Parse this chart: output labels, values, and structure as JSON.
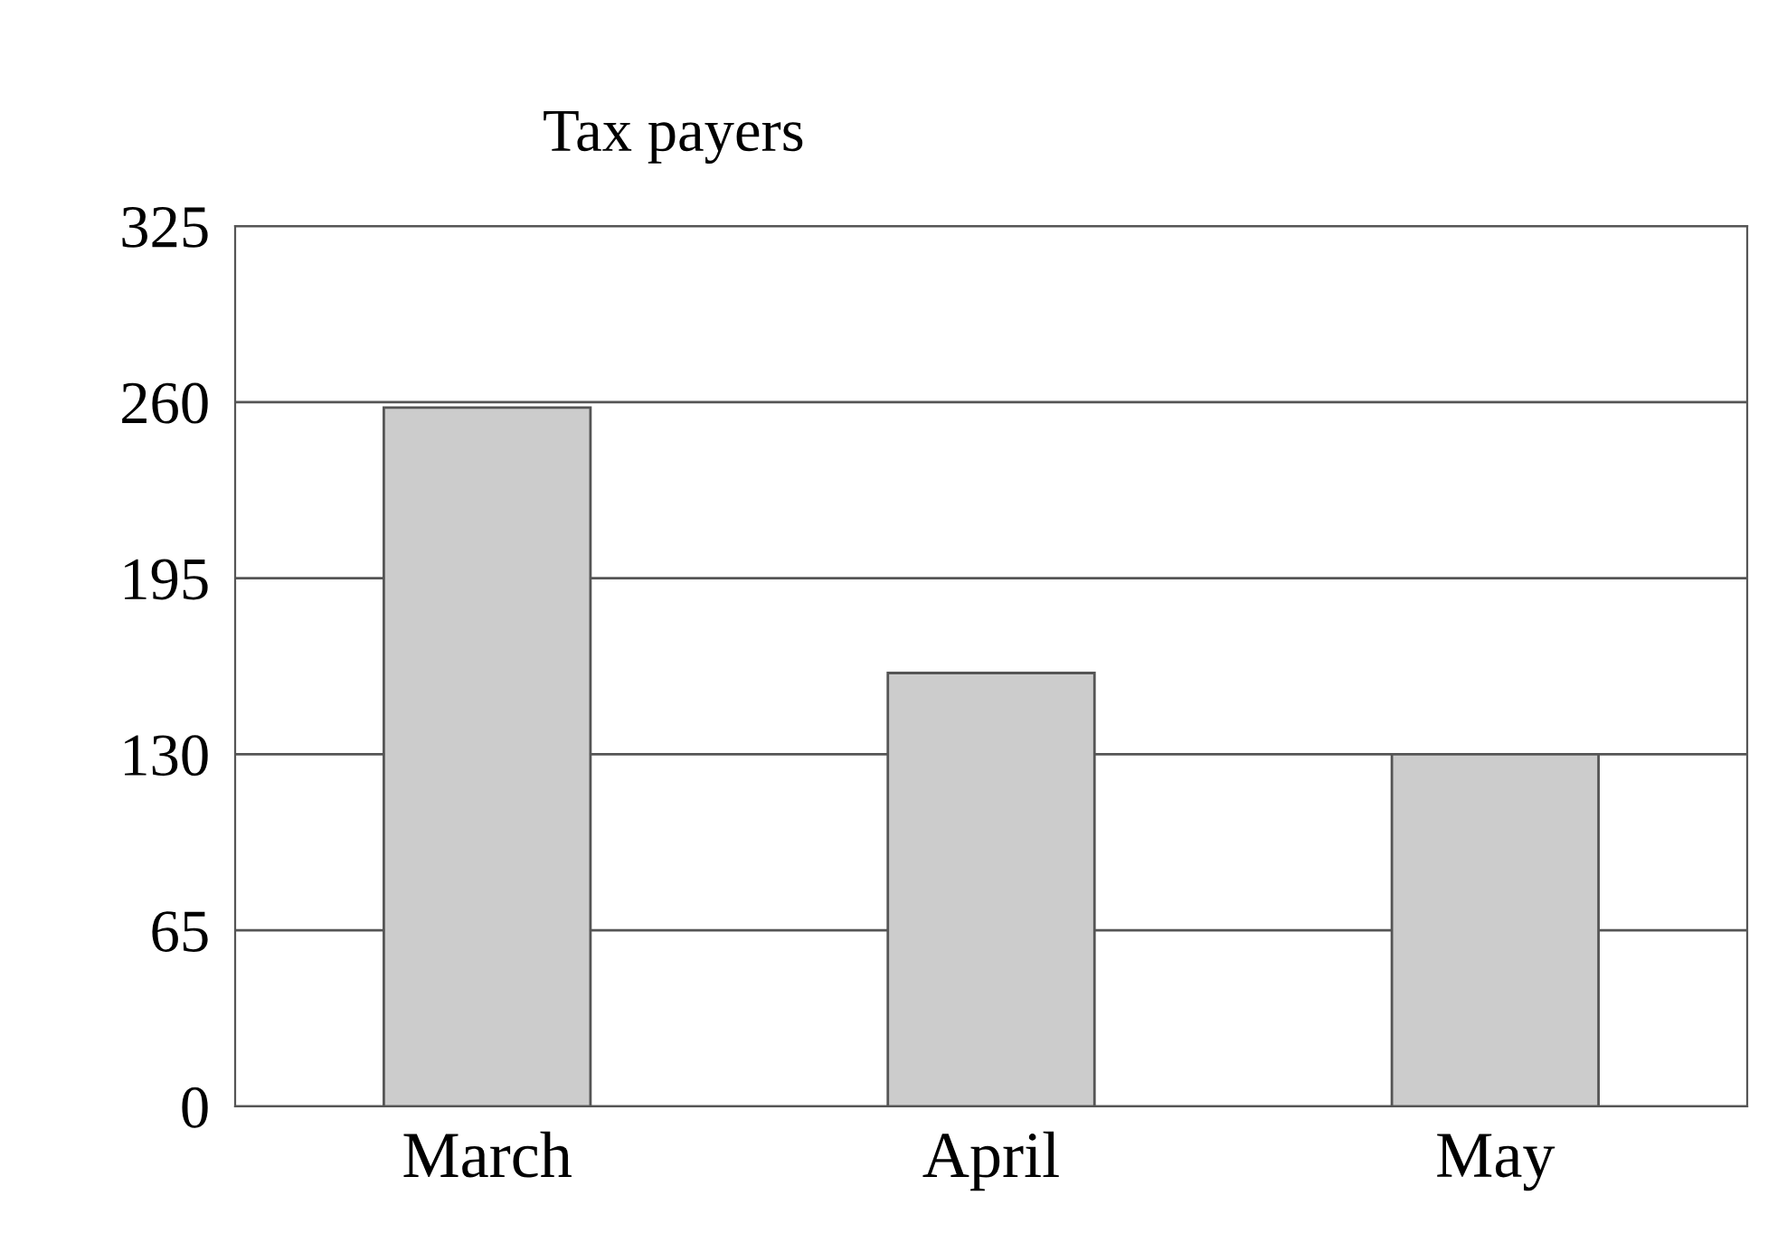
{
  "chart_data": {
    "type": "bar",
    "title": "Tax payers",
    "categories": [
      "March",
      "April",
      "May"
    ],
    "values": [
      258,
      160,
      130
    ],
    "color": "#cccccc",
    "ylim": [
      0,
      325
    ],
    "yticks": [
      0,
      65,
      130,
      195,
      260,
      325
    ],
    "grid": "y"
  }
}
